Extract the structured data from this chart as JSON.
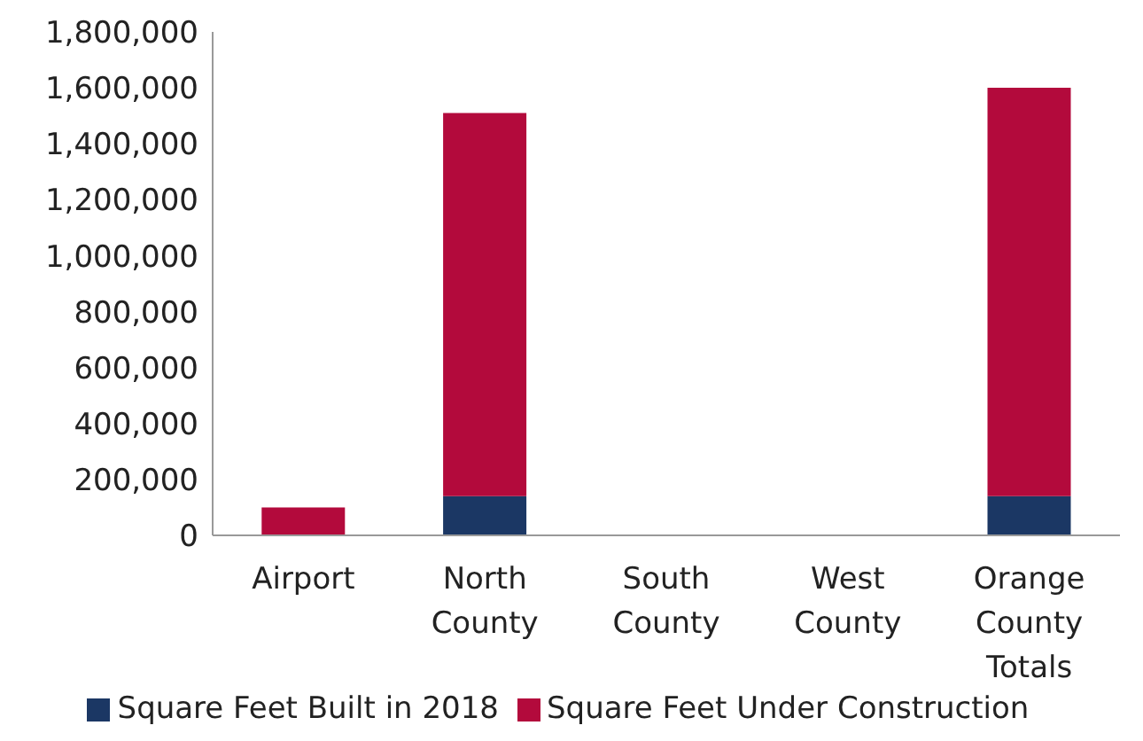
{
  "chart_data": {
    "type": "bar",
    "stacked": true,
    "categories": [
      "Airport",
      "North County",
      "South County",
      "West County",
      "Orange County Totals"
    ],
    "series": [
      {
        "name": "Square Feet Built in 2018",
        "color": "#1b3764",
        "values": [
          0,
          140000,
          0,
          0,
          140000
        ]
      },
      {
        "name": "Square Feet Under Construction",
        "color": "#b30a3c",
        "values": [
          100000,
          1370000,
          0,
          0,
          1460000
        ]
      }
    ],
    "ylim": [
      0,
      1800000
    ],
    "yticks": [
      {
        "value": 0,
        "label": "0"
      },
      {
        "value": 200000,
        "label": "200,000"
      },
      {
        "value": 400000,
        "label": "400,000"
      },
      {
        "value": 600000,
        "label": "600,000"
      },
      {
        "value": 800000,
        "label": "800,000"
      },
      {
        "value": 1000000,
        "label": "1,000,000"
      },
      {
        "value": 1200000,
        "label": "1,200,000"
      },
      {
        "value": 1400000,
        "label": "1,400,000"
      },
      {
        "value": 1600000,
        "label": "1,600,000"
      },
      {
        "value": 1800000,
        "label": "1,800,000"
      }
    ],
    "grid": false,
    "legend": "bottom"
  }
}
